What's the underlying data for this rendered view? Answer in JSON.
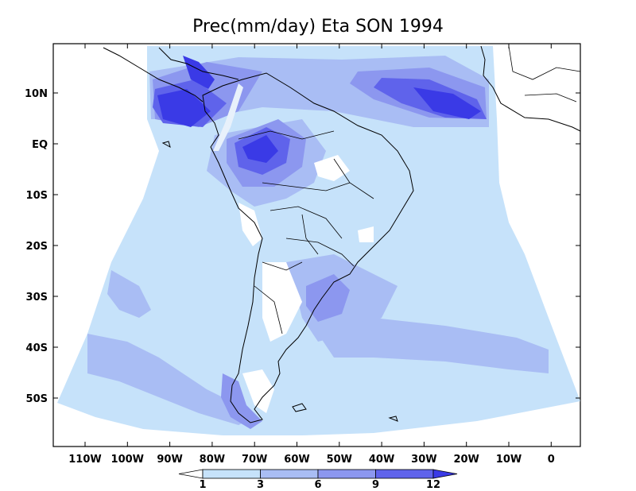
{
  "title": "Prec(mm/day) Eta SON 1994",
  "y_ticks": [
    "10N",
    "EQ",
    "10S",
    "20S",
    "30S",
    "40S",
    "50S"
  ],
  "x_ticks": [
    "110W",
    "100W",
    "90W",
    "80W",
    "70W",
    "60W",
    "50W",
    "40W",
    "30W",
    "20W",
    "10W",
    "0"
  ],
  "colorbar": {
    "levels": [
      "1",
      "3",
      "6",
      "9",
      "12"
    ],
    "colors": [
      "#ffffff",
      "#c6e2fa",
      "#a9bdf4",
      "#8c97ef",
      "#5f63eb",
      "#3a3ae6"
    ]
  },
  "palette": {
    "lvl1": "#c6e2fa",
    "lvl2": "#a9bdf4",
    "lvl3": "#8c97ef",
    "lvl4": "#5f63eb",
    "lvl5": "#3a3ae6"
  }
}
